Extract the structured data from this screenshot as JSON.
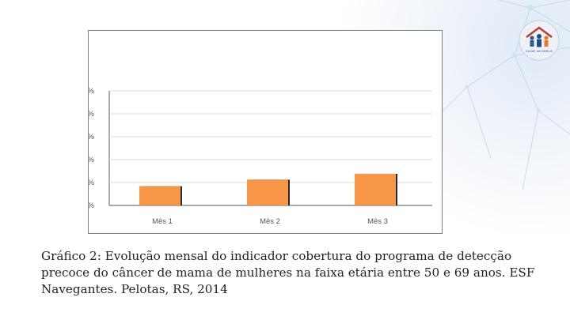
{
  "colors": {
    "bar": "#F79646",
    "bar_shadow": "#2b2b2b",
    "axis": "#555555",
    "grid": "#d9d9d9"
  },
  "logo": {
    "icon": "family-house-logo-icon",
    "text": "SAÚDE DA FAMÍLIA"
  },
  "chart_data": {
    "type": "bar",
    "categories": [
      "Mês 1",
      "Mês 2",
      "Mês 3"
    ],
    "values": [
      16.8,
      22.5,
      27.6
    ],
    "y_ticks": [
      "100,0%",
      "80,0%",
      "60,0%",
      "40,0%",
      "20,0%",
      "0,0%"
    ],
    "ylim": [
      0,
      100
    ],
    "grid": true,
    "legend": "none",
    "title": "",
    "xlabel": "",
    "ylabel": ""
  },
  "caption": "Gráfico 2: Evolução mensal do indicador cobertura do programa de detecção precoce do câncer de mama de mulheres na faixa etária entre 50 e 69 anos. ESF Navegantes. Pelotas, RS, 2014"
}
